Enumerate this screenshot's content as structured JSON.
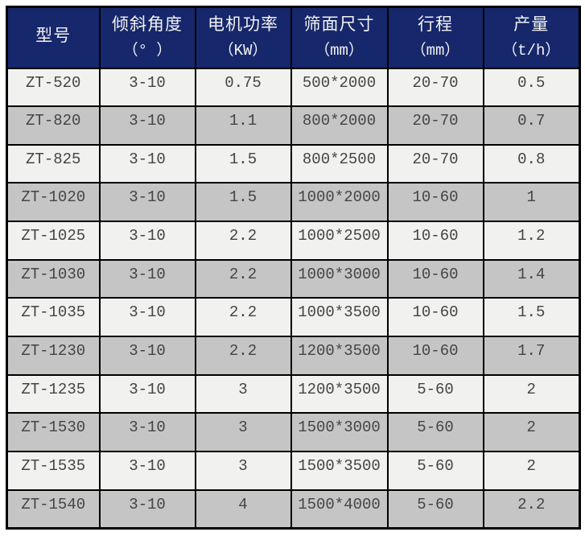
{
  "colors": {
    "header_bg": "#16276b",
    "header_text": "#f2f2f2",
    "row_light": "#f1f1ef",
    "row_dark": "#c5c5c5",
    "border": "#000000",
    "cell_text": "#444444",
    "page_bg": "#ffffff"
  },
  "chart_data": {
    "type": "table",
    "columns": [
      {
        "title": "型号",
        "unit": ""
      },
      {
        "title": "倾斜角度",
        "unit": "（° ）"
      },
      {
        "title": "电机功率",
        "unit": "（KW）"
      },
      {
        "title": "筛面尺寸",
        "unit": "（mm）"
      },
      {
        "title": "行程",
        "unit": "（mm）"
      },
      {
        "title": "产量",
        "unit": "（t/h）"
      }
    ],
    "rows": [
      [
        "ZT-520",
        "3-10",
        "0.75",
        "500*2000",
        "20-70",
        "0.5"
      ],
      [
        "ZT-820",
        "3-10",
        "1.1",
        "800*2000",
        "20-70",
        "0.7"
      ],
      [
        "ZT-825",
        "3-10",
        "1.5",
        "800*2500",
        "20-70",
        "0.8"
      ],
      [
        "ZT-1020",
        "3-10",
        "1.5",
        "1000*2000",
        "10-60",
        "1"
      ],
      [
        "ZT-1025",
        "3-10",
        "2.2",
        "1000*2500",
        "10-60",
        "1.2"
      ],
      [
        "ZT-1030",
        "3-10",
        "2.2",
        "1000*3000",
        "10-60",
        "1.4"
      ],
      [
        "ZT-1035",
        "3-10",
        "2.2",
        "1000*3500",
        "10-60",
        "1.5"
      ],
      [
        "ZT-1230",
        "3-10",
        "2.2",
        "1200*3500",
        "10-60",
        "1.7"
      ],
      [
        "ZT-1235",
        "3-10",
        "3",
        "1200*3500",
        "5-60",
        "2"
      ],
      [
        "ZT-1530",
        "3-10",
        "3",
        "1500*3000",
        "5-60",
        "2"
      ],
      [
        "ZT-1535",
        "3-10",
        "3",
        "1500*3500",
        "5-60",
        "2"
      ],
      [
        "ZT-1540",
        "3-10",
        "4",
        "1500*4000",
        "5-60",
        "2.2"
      ]
    ],
    "layout_hints": {
      "row_stripe_start": "light",
      "header_lines": 2,
      "cell_text_valign": "top"
    }
  }
}
